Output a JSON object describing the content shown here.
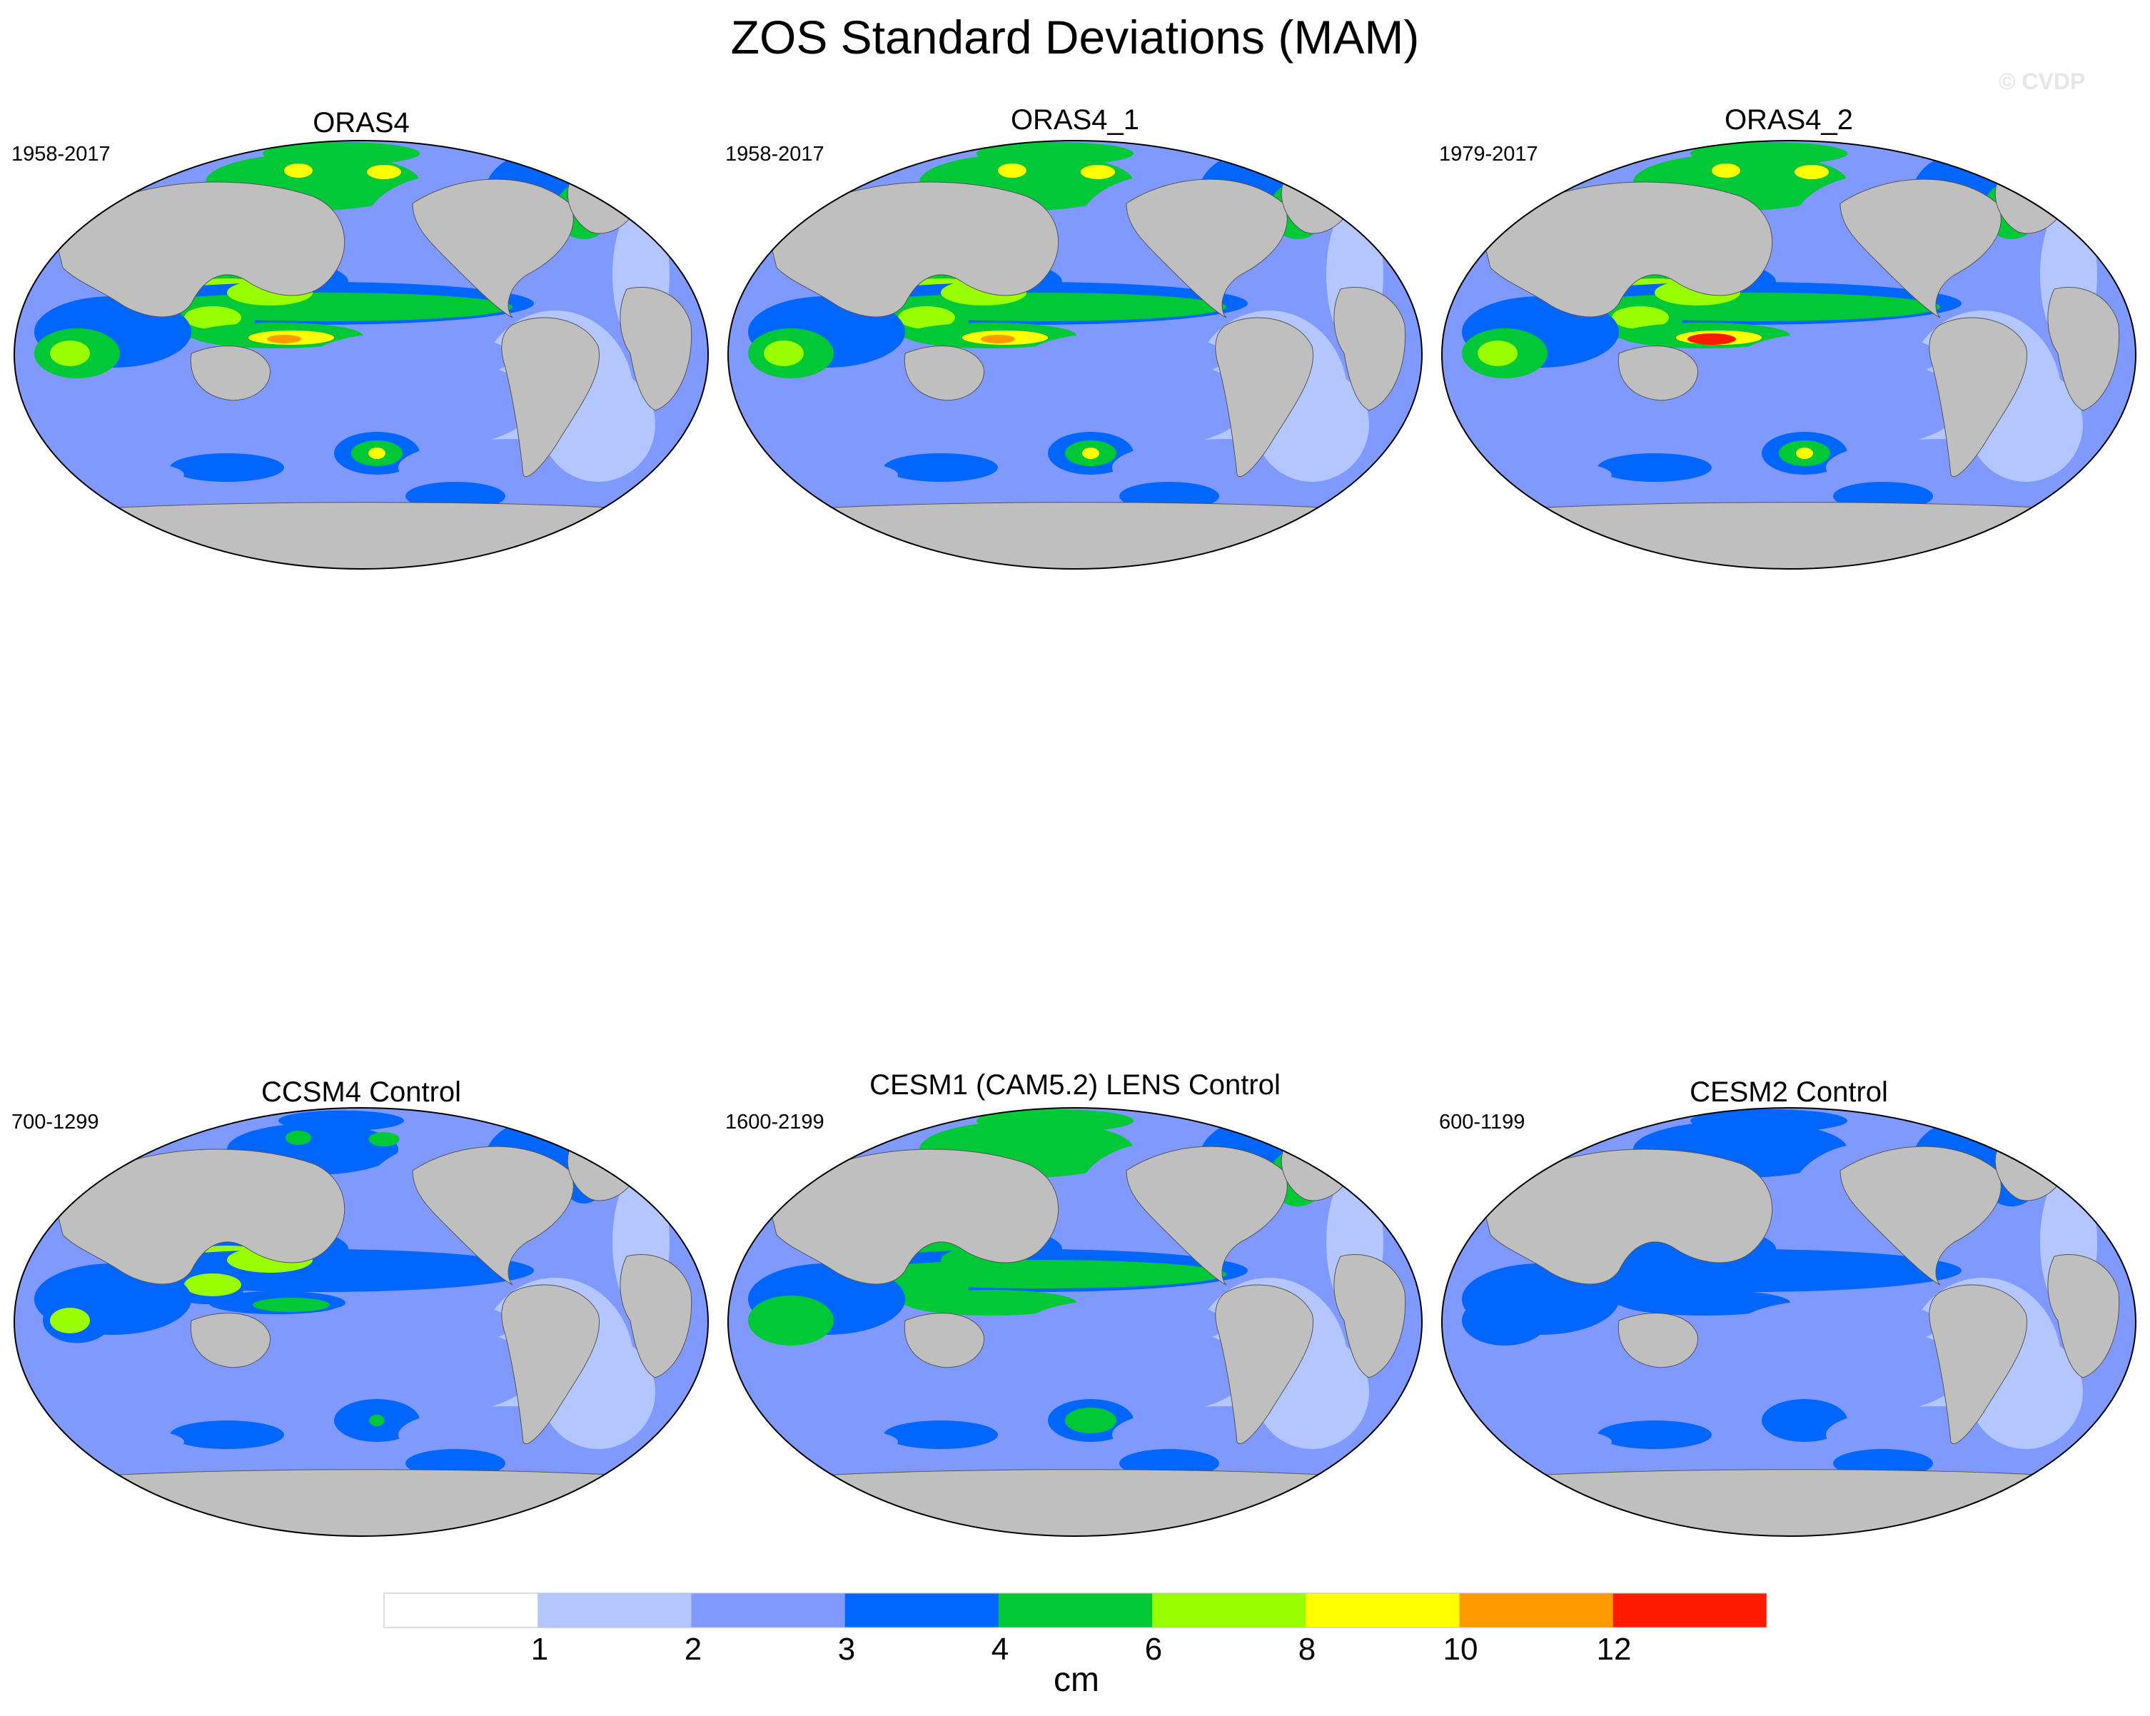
{
  "title": "ZOS Standard Deviations (MAM)",
  "watermark": "© CVDP",
  "panels": [
    {
      "name": "ORAS4",
      "years": "1958-2017",
      "variant": 0
    },
    {
      "name": "ORAS4_1",
      "years": "1958-2017",
      "variant": 0
    },
    {
      "name": "ORAS4_2",
      "years": "1979-2017",
      "variant": 1
    },
    {
      "name": "CCSM4 Control",
      "years": "700-1299",
      "variant": 2
    },
    {
      "name": "CESM1 (CAM5.2) LENS Control",
      "years": "1600-2199",
      "variant": 3
    },
    {
      "name": "CESM2 Control",
      "years": "600-1199",
      "variant": 4
    }
  ],
  "colorbar": {
    "unit": "cm",
    "labels": [
      "1",
      "2",
      "3",
      "4",
      "6",
      "8",
      "10",
      "12"
    ],
    "colors": [
      "#ffffff",
      "#b3c6ff",
      "#8099ff",
      "#0066ff",
      "#00c837",
      "#99ff00",
      "#ffff00",
      "#ff9900",
      "#ff1a00"
    ]
  },
  "land_color": "#bfbfbf"
}
